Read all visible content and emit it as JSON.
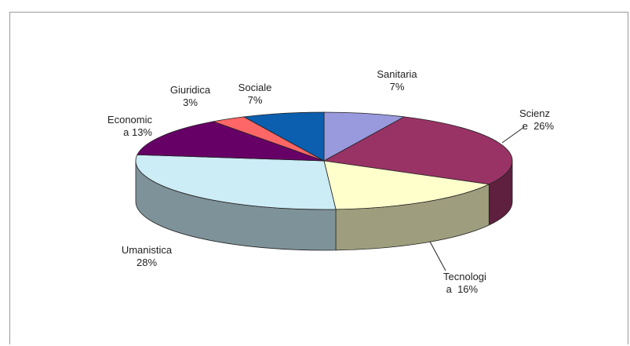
{
  "chart_data": {
    "type": "pie",
    "variant": "3d",
    "title": "",
    "slices": [
      {
        "label": "Sanitaria",
        "value": 7,
        "label_text": "Sanitaria\n7%",
        "color": "#9999dd"
      },
      {
        "label": "Scienz e",
        "value": 26,
        "label_text": "Scienz\n e  26%",
        "color": "#993366"
      },
      {
        "label": "Tecnologi a",
        "value": 16,
        "label_text": "Tecnologi\n a  16%",
        "color": "#ffffcc"
      },
      {
        "label": "Umanistica",
        "value": 28,
        "label_text": "Umanistica\n28%",
        "color": "#ccecf6"
      },
      {
        "label": "Economic a",
        "value": 13,
        "label_text": "Economic\na 13%",
        "color": "#660066"
      },
      {
        "label": "Giuridica",
        "value": 3,
        "label_text": "Giuridica\n3%",
        "color": "#ff6666"
      },
      {
        "label": "Sociale",
        "value": 7,
        "label_text": "Sociale\n7%",
        "color": "#0b5fae"
      }
    ],
    "legend": "none",
    "data_labels": "outside"
  }
}
